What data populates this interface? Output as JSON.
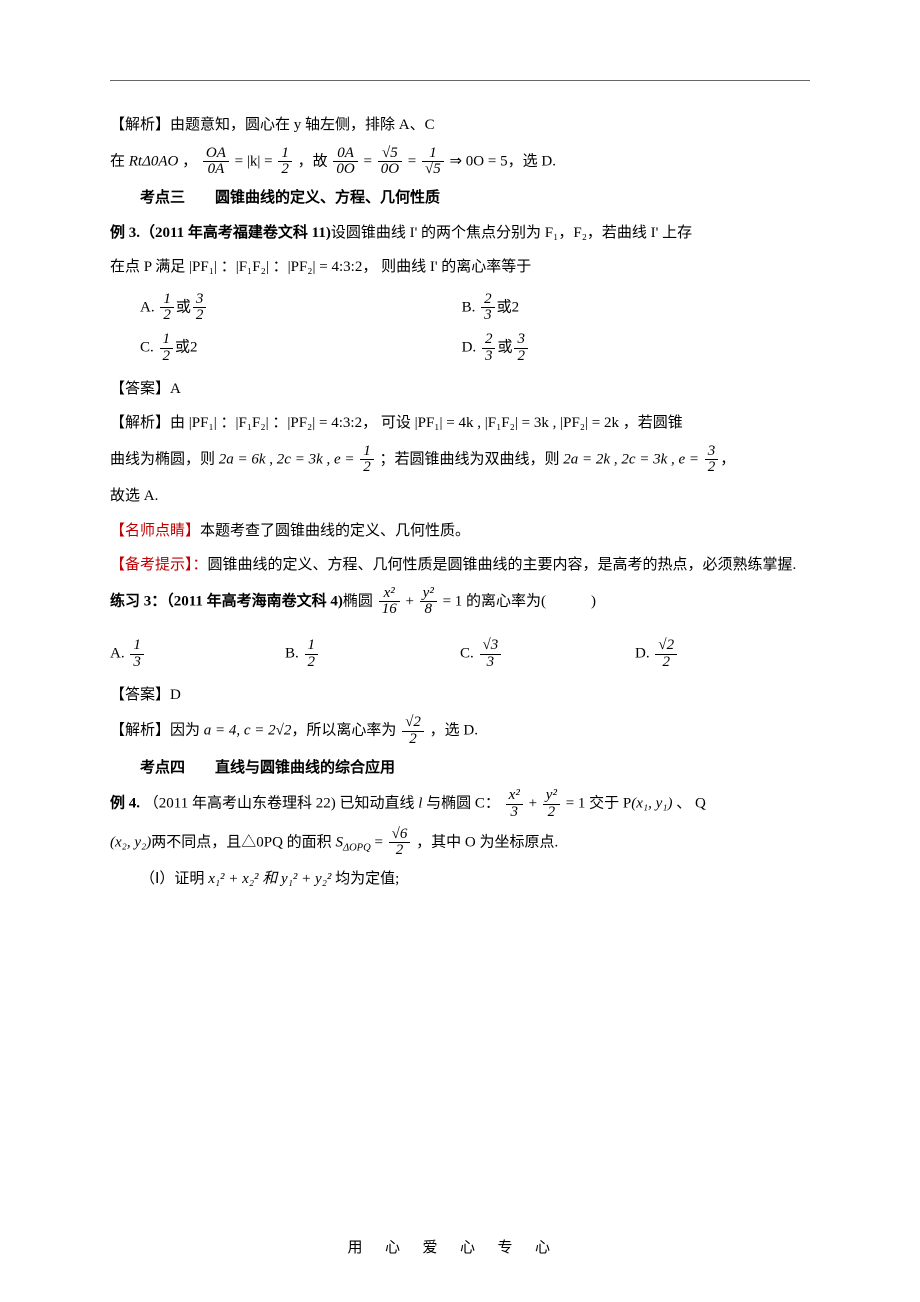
{
  "labels": {
    "jiexi": "【解析】",
    "daan": "【答案】",
    "mingshi": "【名师点睛】",
    "beikao": "【备考提示】："
  },
  "block1": {
    "line1": "由题意知，圆心在 y 轴左侧，排除 A、C",
    "line2_pre": "在 ",
    "line2_rt": "RtΔ0AO",
    "line2_mid1": " ，",
    "line2_eqA": "= |k| =",
    "line2_mid2": "，故 ",
    "line2_eqB": " = ",
    "line2_eqC": " = ",
    "line2_imp": " ⇒ 0O = 5",
    "line2_end": "，选 D.",
    "frac_OA_0A_num": "OA",
    "frac_OA_0A_den": "0A",
    "frac_1_2_num": "1",
    "frac_1_2_den": "2",
    "frac_0A_0O_num": "0A",
    "frac_0A_0O_den": "0O",
    "frac_s5_0O_num": "√5",
    "frac_s5_0O_den": "0O",
    "frac_1_s5_num": "1",
    "frac_1_s5_den": "√5"
  },
  "kd3": {
    "title": "考点三　　圆锥曲线的定义、方程、几何性质",
    "ex_label": "例 3.（2011 年高考福建卷文科 11)",
    "ex_text": "设圆锥曲线 I' 的两个焦点分别为 F₁，F₂，若曲线 I' 上存",
    "ex_text2a": "在点 P 满足",
    "ex_ratio": "|PF₁| ：|F₁F₂| ：|PF₂| = 4:3:2，",
    "ex_text2b": "则曲线 I' 的离心率等于",
    "A": "A.  ",
    "A_f1n": "1",
    "A_f1d": "2",
    "A_or": "或",
    "A_f2n": "3",
    "A_f2d": "2",
    "B": "B.  ",
    "B_f1n": "2",
    "B_f1d": "3",
    "B_or": "或2",
    "C": "C.  ",
    "C_f1n": "1",
    "C_f1d": "2",
    "C_or": "或2",
    "D": "D.  ",
    "D_f1n": "2",
    "D_f1d": "3",
    "D_or": "或",
    "D_f2n": "3",
    "D_f2d": "2",
    "answer": "A",
    "sol_a": "由",
    "sol_ratio": "|PF₁| ：|F₁F₂| ：|PF₂| = 4:3:2，",
    "sol_b": "可设",
    "sol_pf1": "|PF₁| = 4k",
    "sol_comma": " , ",
    "sol_f1f2": "|F₁F₂| = 3k",
    "sol_pf2": "|PF₂| = 2k",
    "sol_c": "，若圆锥",
    "sol_line2a": "曲线为椭圆，则 ",
    "sol_2a6k": "2a = 6k",
    "sol_2c3k": "2c = 3k",
    "sol_e": "e =",
    "sol_e1n": "1",
    "sol_e1d": "2",
    "sol_line2b": "；若圆锥曲线为双曲线，则 ",
    "sol_2a2k": "2a = 2k",
    "sol_e2n": "3",
    "sol_e2d": "2",
    "sol_line3": "故选 A.",
    "ms_text": "本题考查了圆锥曲线的定义、几何性质。",
    "bk_text": "圆锥曲线的定义、方程、几何性质是圆锥曲线的主要内容，是高考的热点，必须熟练掌握."
  },
  "ex3": {
    "label": "练习 3：（2011 年高考海南卷文科 4)",
    "text_a": "椭圆",
    "eq_num1": "x²",
    "eq_den1": "16",
    "eq_plus": "+",
    "eq_num2": "y²",
    "eq_den2": "8",
    "eq_eq": "= 1",
    "text_b": "的离心率为(　　　)",
    "A": "A.",
    "An": "1",
    "Ad": "3",
    "B": "B.",
    "Bn": "1",
    "Bd": "2",
    "C": "C.",
    "Cn": "√3",
    "Cd": "3",
    "D": "D.",
    "Dn": "√2",
    "Dd": "2",
    "answer": "D",
    "sol_a": "因为",
    "sol_ac": "a = 4, c = 2√2",
    "sol_b": "，所以离心率为",
    "sol_en": "√2",
    "sol_ed": "2",
    "sol_c": "，选 D."
  },
  "kd4": {
    "title": "考点四　　直线与圆锥曲线的综合应用",
    "ex_label": "例 4.",
    "ex_src": "（2011 年高考山东卷理科 22)",
    "ex_a": "已知动直线 ",
    "ex_l": "l",
    "ex_b": " 与椭圆 C：",
    "eq_num1": "x²",
    "eq_den1": "3",
    "eq_plus": "+",
    "eq_num2": "y²",
    "eq_den2": "2",
    "eq_eq": "= 1",
    "ex_c": "交于 P",
    "ex_p": "(x₁, y₁)",
    "ex_d": " 、 Q",
    "ex_q": "(x₂, y₂)",
    "ex_e": "两不同点，且△0PQ 的面积",
    "ex_S": "S",
    "ex_Ssub": "ΔOPQ",
    "ex_Seq": " = ",
    "ex_Sn": "√6",
    "ex_Sd": "2",
    "ex_f": "，其中 O 为坐标原点.",
    "part1": "（Ⅰ）证明 ",
    "p1_eq": "x₁² + x₂² 和 y₁² + y₂²",
    "p1_end": " 均为定值;"
  },
  "footer": "用心爱心专心"
}
